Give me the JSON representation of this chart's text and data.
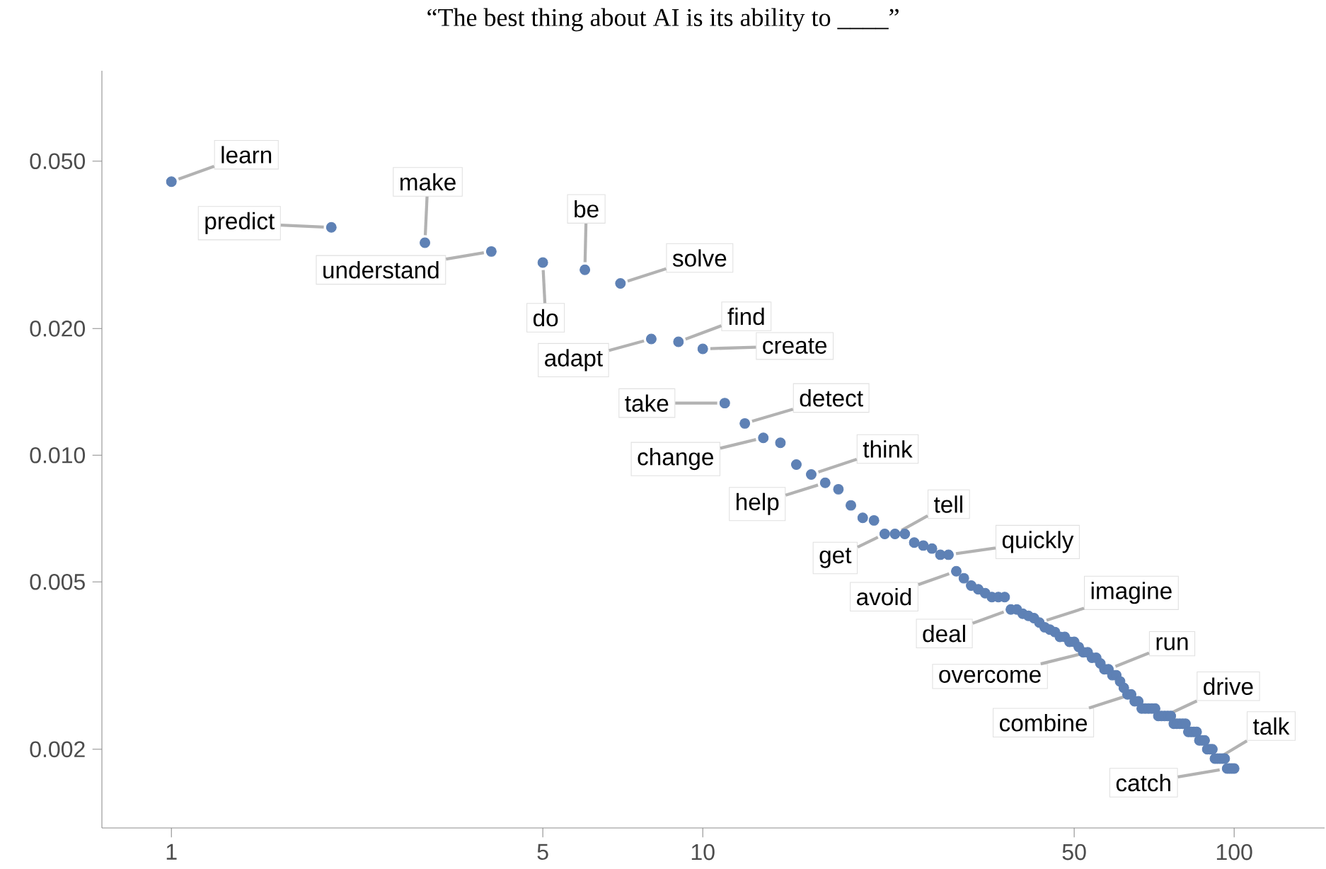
{
  "chart_data": {
    "type": "scatter",
    "title": "“The best thing about AI is its ability to ____”",
    "x": [
      1,
      2,
      3,
      4,
      5,
      6,
      7,
      8,
      9,
      10,
      11,
      12,
      13,
      14,
      15,
      16,
      17,
      18,
      19,
      20,
      21,
      22,
      23,
      24,
      25,
      26,
      27,
      28,
      29,
      30,
      31,
      32,
      33,
      34,
      35,
      36,
      37,
      38,
      39,
      40,
      41,
      42,
      43,
      44,
      45,
      46,
      47,
      48,
      49,
      50,
      51,
      52,
      53,
      54,
      55,
      56,
      57,
      58,
      59,
      60,
      61,
      62,
      63,
      64,
      65,
      66,
      67,
      68,
      69,
      70,
      71,
      72,
      73,
      74,
      75,
      76,
      77,
      78,
      79,
      80,
      81,
      82,
      83,
      84,
      85,
      86,
      87,
      88,
      89,
      90,
      91,
      92,
      93,
      94,
      95,
      96,
      97,
      98,
      99,
      100
    ],
    "values": [
      0.0447,
      0.0348,
      0.032,
      0.0305,
      0.0287,
      0.0276,
      0.0256,
      0.0189,
      0.0186,
      0.0179,
      0.0133,
      0.0119,
      0.011,
      0.0107,
      0.0095,
      0.009,
      0.0086,
      0.0083,
      0.0076,
      0.0071,
      0.007,
      0.0065,
      0.0065,
      0.0065,
      0.0062,
      0.0061,
      0.006,
      0.0058,
      0.0058,
      0.0053,
      0.0051,
      0.0049,
      0.0048,
      0.0047,
      0.0046,
      0.0046,
      0.0046,
      0.0043,
      0.0043,
      0.0042,
      0.00415,
      0.0041,
      0.004,
      0.0039,
      0.00385,
      0.0038,
      0.0037,
      0.0037,
      0.0036,
      0.0036,
      0.0035,
      0.0034,
      0.0034,
      0.0033,
      0.0033,
      0.0032,
      0.0031,
      0.0031,
      0.003,
      0.003,
      0.0029,
      0.0028,
      0.0027,
      0.0027,
      0.0026,
      0.0026,
      0.0025,
      0.0025,
      0.0025,
      0.0025,
      0.0025,
      0.0024,
      0.0024,
      0.0024,
      0.0024,
      0.0024,
      0.0023,
      0.0023,
      0.0023,
      0.0023,
      0.0023,
      0.0022,
      0.0022,
      0.0022,
      0.0022,
      0.0021,
      0.0021,
      0.0021,
      0.002,
      0.002,
      0.002,
      0.0019,
      0.0019,
      0.0019,
      0.0019,
      0.0019,
      0.0018,
      0.0018,
      0.0018,
      0.0018
    ],
    "color": "#5e81b5",
    "log": "xy",
    "xlim": [
      0.74,
      148
    ],
    "ylim": [
      0.0013,
      0.082
    ],
    "xticks": [
      1,
      5,
      10,
      50,
      100
    ],
    "yticks": [
      {
        "value": 0.05,
        "label": "0.050"
      },
      {
        "value": 0.02,
        "label": "0.020"
      },
      {
        "value": 0.01,
        "label": "0.010"
      },
      {
        "value": 0.005,
        "label": "0.005"
      },
      {
        "value": 0.002,
        "label": "0.002"
      }
    ],
    "annotations": [
      {
        "text": "learn",
        "x": 1,
        "y": 0.0447
      },
      {
        "text": "predict",
        "x": 2,
        "y": 0.0348
      },
      {
        "text": "make",
        "x": 3,
        "y": 0.032
      },
      {
        "text": "understand",
        "x": 4,
        "y": 0.0305
      },
      {
        "text": "do",
        "x": 5,
        "y": 0.0287
      },
      {
        "text": "be",
        "x": 6,
        "y": 0.0276
      },
      {
        "text": "solve",
        "x": 7,
        "y": 0.0256
      },
      {
        "text": "adapt",
        "x": 8,
        "y": 0.0189
      },
      {
        "text": "find",
        "x": 9,
        "y": 0.0186
      },
      {
        "text": "create",
        "x": 10,
        "y": 0.0179
      },
      {
        "text": "take",
        "x": 11,
        "y": 0.0133
      },
      {
        "text": "detect",
        "x": 12,
        "y": 0.0119
      },
      {
        "text": "change",
        "x": 13,
        "y": 0.011
      },
      {
        "text": "think",
        "x": 16,
        "y": 0.009
      },
      {
        "text": "help",
        "x": 17,
        "y": 0.0086
      },
      {
        "text": "tell",
        "x": 23,
        "y": 0.0065
      },
      {
        "text": "get",
        "x": 22,
        "y": 0.0065
      },
      {
        "text": "quickly",
        "x": 29,
        "y": 0.0058
      },
      {
        "text": "avoid",
        "x": 30,
        "y": 0.0053
      },
      {
        "text": "deal",
        "x": 38,
        "y": 0.0043
      },
      {
        "text": "imagine",
        "x": 43,
        "y": 0.004
      },
      {
        "text": "overcome",
        "x": 53,
        "y": 0.0034
      },
      {
        "text": "run",
        "x": 58,
        "y": 0.0031
      },
      {
        "text": "combine",
        "x": 64,
        "y": 0.0027
      },
      {
        "text": "drive",
        "x": 74,
        "y": 0.0024
      },
      {
        "text": "talk",
        "x": 93,
        "y": 0.0019
      },
      {
        "text": "catch",
        "x": 97,
        "y": 0.0018
      }
    ]
  }
}
